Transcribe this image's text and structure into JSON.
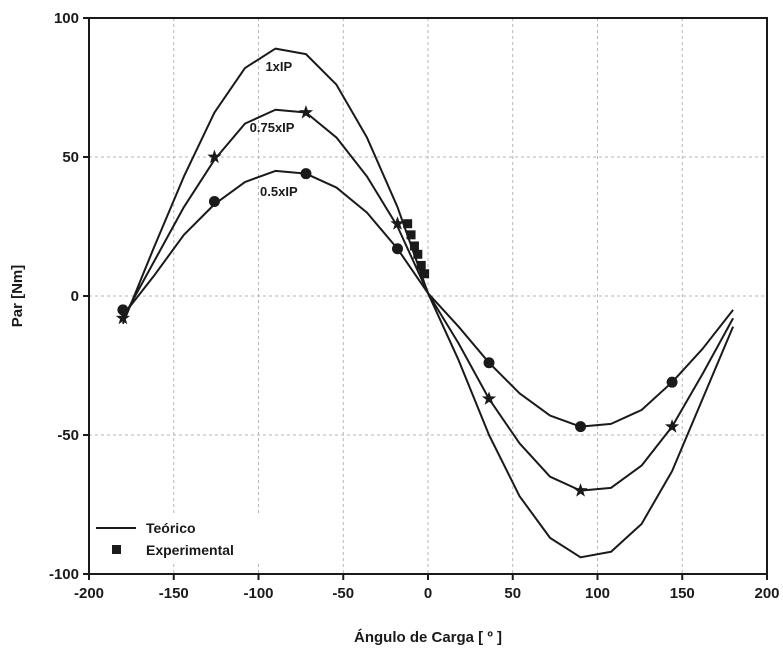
{
  "chart_data": {
    "type": "line",
    "title": "",
    "xlabel": "Ángulo de Carga [ º ]",
    "ylabel": "Par [Nm]",
    "xlim": [
      -200,
      200
    ],
    "ylim": [
      -100,
      100
    ],
    "x_ticks": [
      -200,
      -150,
      -100,
      -50,
      0,
      50,
      100,
      150,
      200
    ],
    "y_ticks": [
      -100,
      -50,
      0,
      50,
      100
    ],
    "grid": true,
    "legend": {
      "position": "bottom-left",
      "entries": [
        {
          "label": "Teórico",
          "marker": "line"
        },
        {
          "label": "Experimental",
          "marker": "square"
        }
      ]
    },
    "annotations": [
      {
        "text": "1xIP",
        "x": -88,
        "y": 81
      },
      {
        "text": "0.75xIP",
        "x": -92,
        "y": 59
      },
      {
        "text": "0.5xIP",
        "x": -88,
        "y": 36
      }
    ],
    "series": [
      {
        "name": "Teórico 1xIP",
        "style": "line",
        "x": [
          -180,
          -162,
          -144,
          -126,
          -108,
          -90,
          -72,
          -54,
          -36,
          -18,
          0,
          18,
          36,
          54,
          72,
          90,
          108,
          126,
          144,
          162,
          180
        ],
        "y": [
          -10,
          17,
          43,
          66,
          82,
          89,
          87,
          76,
          57,
          32,
          1,
          -23,
          -50,
          -72,
          -87,
          -94,
          -92,
          -82,
          -63,
          -37,
          -11
        ]
      },
      {
        "name": "Teórico 0.75xIP",
        "style": "line",
        "x": [
          -180,
          -162,
          -144,
          -126,
          -108,
          -90,
          -72,
          -54,
          -36,
          -18,
          0,
          18,
          36,
          54,
          72,
          90,
          108,
          126,
          144,
          162,
          180
        ],
        "y": [
          -8,
          12,
          32,
          49,
          62,
          67,
          66,
          57,
          43,
          25,
          1,
          -17,
          -37,
          -53,
          -65,
          -70,
          -69,
          -61,
          -47,
          -28,
          -8
        ]
      },
      {
        "name": "Teórico 0.5xIP",
        "style": "line",
        "x": [
          -180,
          -162,
          -144,
          -126,
          -108,
          -90,
          -72,
          -54,
          -36,
          -18,
          0,
          18,
          36,
          54,
          72,
          90,
          108,
          126,
          144,
          162,
          180
        ],
        "y": [
          -7,
          7,
          22,
          33,
          41,
          45,
          44,
          39,
          30,
          17,
          1,
          -11,
          -24,
          -35,
          -43,
          -47,
          -46,
          -41,
          -31,
          -19,
          -5
        ]
      },
      {
        "name": "0.75xIP puntos",
        "style": "star",
        "x": [
          -180,
          -126,
          -72,
          -18,
          36,
          90,
          144
        ],
        "y": [
          -8,
          50,
          66,
          26,
          -37,
          -70,
          -47
        ]
      },
      {
        "name": "0.5xIP puntos",
        "style": "circle",
        "x": [
          -180,
          -126,
          -72,
          -18,
          36,
          90,
          144
        ],
        "y": [
          -5,
          34,
          44,
          17,
          -24,
          -47,
          -31
        ]
      },
      {
        "name": "Experimental",
        "style": "square",
        "x": [
          -12,
          -10,
          -8,
          -6,
          -4,
          -2
        ],
        "y": [
          26,
          22,
          18,
          15,
          11,
          8
        ]
      }
    ]
  }
}
